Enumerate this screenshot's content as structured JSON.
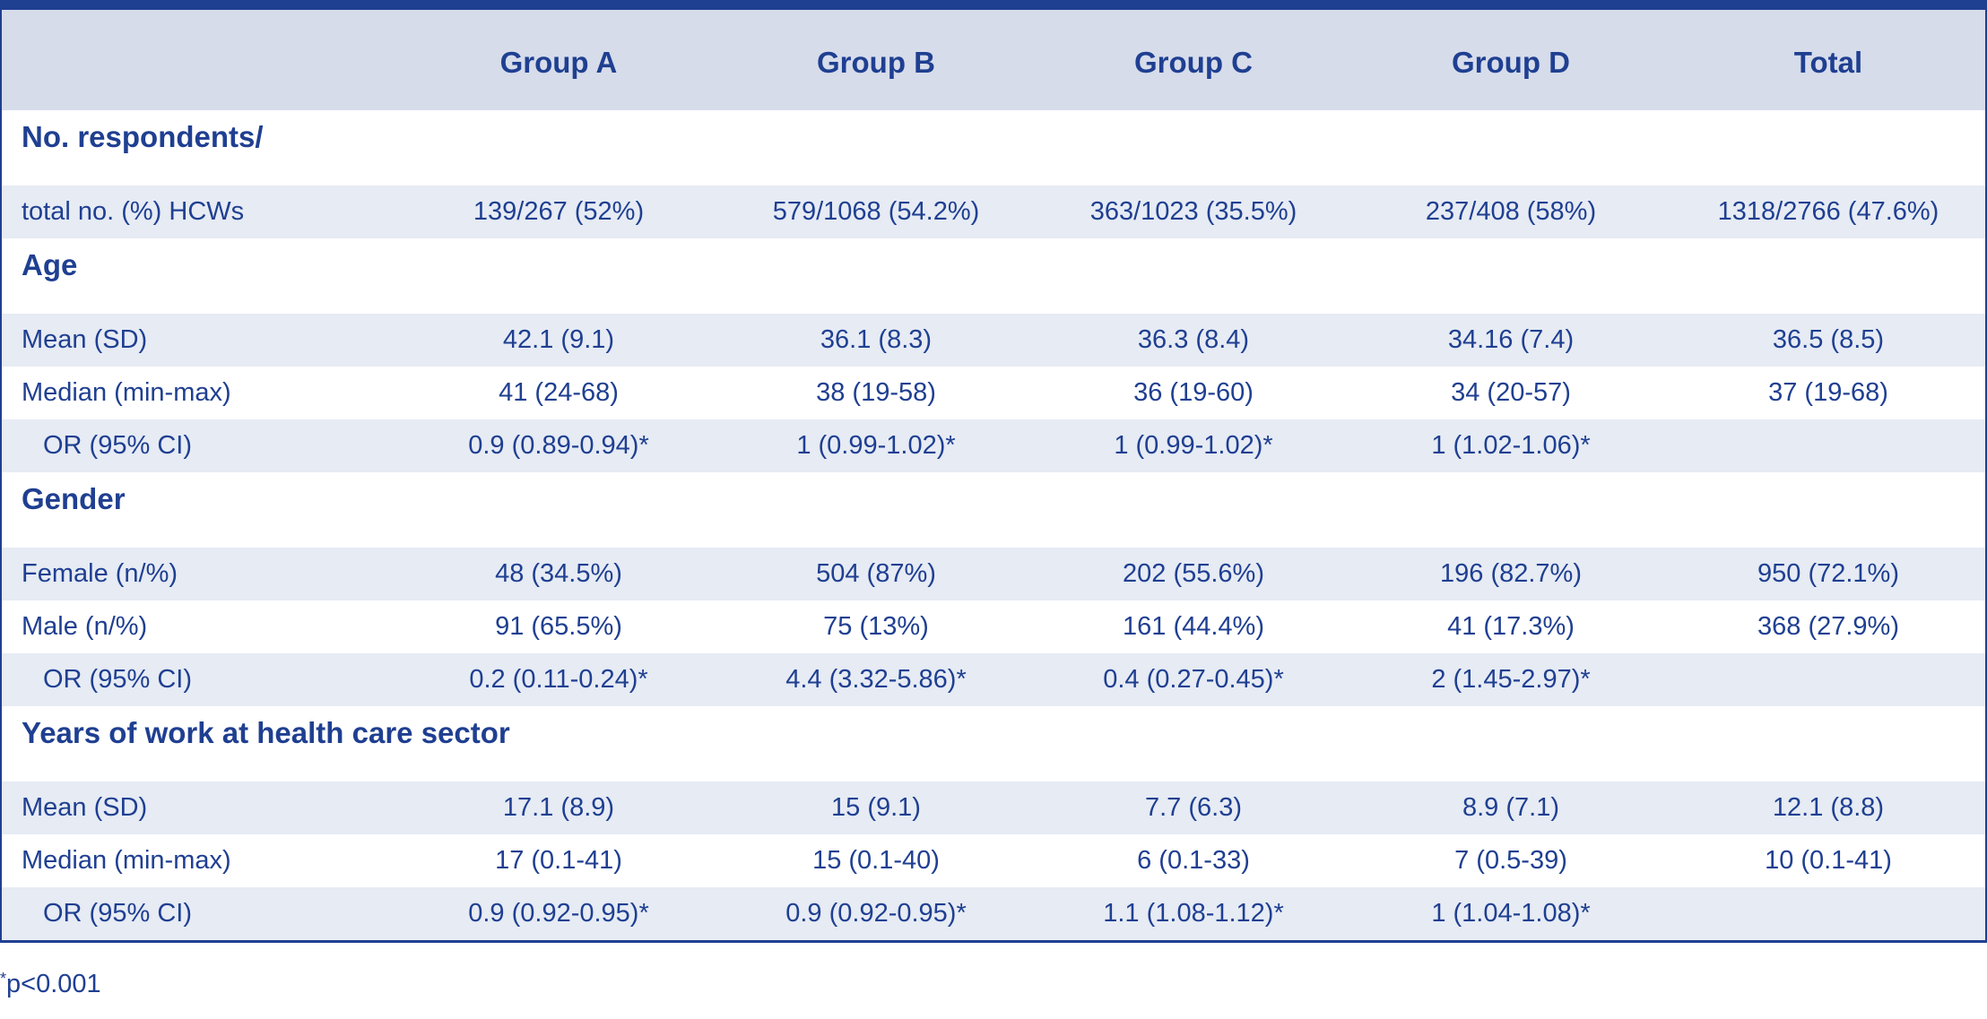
{
  "columns": [
    "Group A",
    "Group B",
    "Group C",
    "Group D",
    "Total"
  ],
  "sections": [
    {
      "title": "No. respondents/",
      "rows": [
        {
          "label": "total no. (%) HCWs",
          "indent": false,
          "values": [
            "139/267 (52%)",
            "579/1068 (54.2%)",
            "363/1023 (35.5%)",
            "237/408 (58%)",
            "1318/2766 (47.6%)"
          ]
        }
      ]
    },
    {
      "title": "Age",
      "rows": [
        {
          "label": "Mean (SD)",
          "indent": false,
          "values": [
            "42.1 (9.1)",
            "36.1 (8.3)",
            "36.3 (8.4)",
            "34.16 (7.4)",
            "36.5 (8.5)"
          ]
        },
        {
          "label": "Median (min-max)",
          "indent": false,
          "values": [
            "41 (24-68)",
            "38 (19-58)",
            "36 (19-60)",
            "34 (20-57)",
            "37 (19-68)"
          ]
        },
        {
          "label": "OR (95% CI)",
          "indent": true,
          "values": [
            "0.9 (0.89-0.94)*",
            "1 (0.99-1.02)*",
            "1 (0.99-1.02)*",
            "1 (1.02-1.06)*",
            ""
          ]
        }
      ]
    },
    {
      "title": "Gender",
      "rows": [
        {
          "label": "Female (n/%)",
          "indent": false,
          "values": [
            "48 (34.5%)",
            "504 (87%)",
            "202 (55.6%)",
            "196 (82.7%)",
            "950 (72.1%)"
          ]
        },
        {
          "label": "Male (n/%)",
          "indent": false,
          "values": [
            "91 (65.5%)",
            "75 (13%)",
            "161 (44.4%)",
            "41 (17.3%)",
            "368 (27.9%)"
          ]
        },
        {
          "label": "OR (95% CI)",
          "indent": true,
          "values": [
            "0.2 (0.11-0.24)*",
            "4.4 (3.32-5.86)*",
            "0.4 (0.27-0.45)*",
            "2 (1.45-2.97)*",
            ""
          ]
        }
      ]
    },
    {
      "title": "Years of work at health care sector",
      "rows": [
        {
          "label": "Mean (SD)",
          "indent": false,
          "values": [
            "17.1 (8.9)",
            "15 (9.1)",
            "7.7 (6.3)",
            "8.9 (7.1)",
            "12.1 (8.8)"
          ]
        },
        {
          "label": "Median (min-max)",
          "indent": false,
          "values": [
            "17 (0.1-41)",
            "15 (0.1-40)",
            "6 (0.1-33)",
            "7 (0.5-39)",
            "10 (0.1-41)"
          ]
        },
        {
          "label": "OR (95% CI)",
          "indent": true,
          "values": [
            "0.9 (0.92-0.95)*",
            "0.9 (0.92-0.95)*",
            "1.1 (1.08-1.12)*",
            "1 (1.04-1.08)*",
            ""
          ]
        }
      ]
    }
  ],
  "footnote": {
    "marker": "*",
    "text": "p<0.001"
  },
  "colors": {
    "text": "#1f3f91",
    "header_bg": "#d6dcea",
    "row_shade": "#e6ebf4",
    "border": "#1f3f91"
  }
}
